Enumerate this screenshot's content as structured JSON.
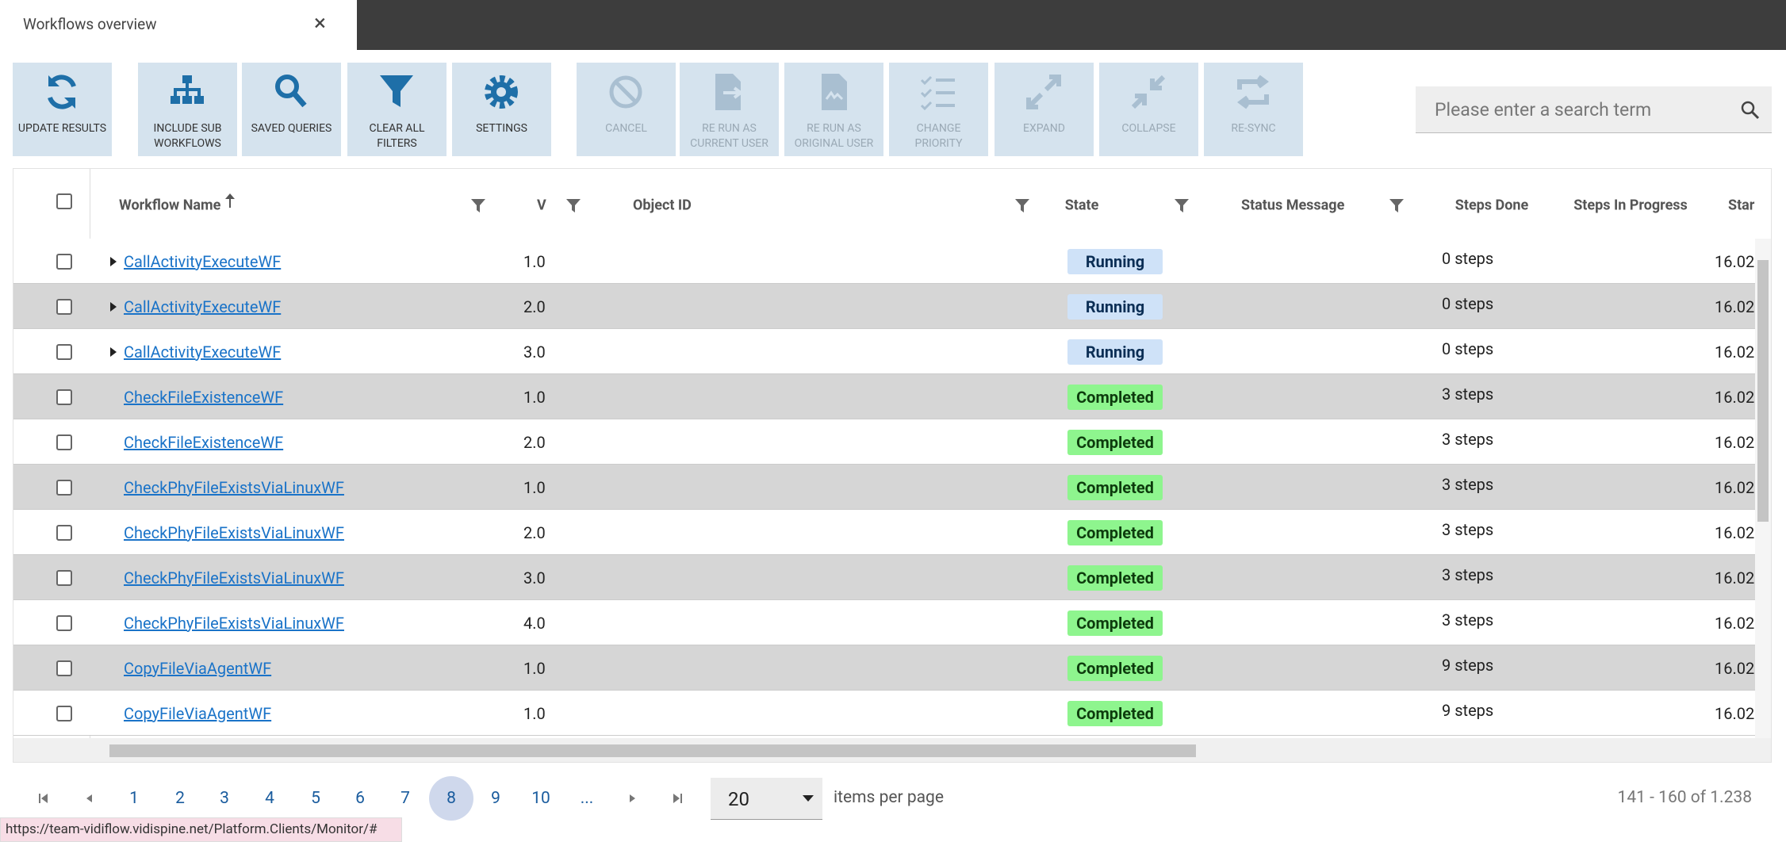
{
  "tab": {
    "title": "Workflows overview",
    "close": "×"
  },
  "toolbar": {
    "buttons": [
      {
        "label": "UPDATE RESULTS",
        "enabled": true
      },
      {
        "label": "INCLUDE SUB WORKFLOWS",
        "enabled": true
      },
      {
        "label": "SAVED QUERIES",
        "enabled": true
      },
      {
        "label": "CLEAR ALL FILTERS",
        "enabled": true
      },
      {
        "label": "SETTINGS",
        "enabled": true
      },
      {
        "label": "CANCEL",
        "enabled": false
      },
      {
        "label": "RE RUN AS CURRENT USER",
        "enabled": false
      },
      {
        "label": "RE RUN AS ORIGINAL USER",
        "enabled": false
      },
      {
        "label": "CHANGE PRIORITY",
        "enabled": false
      },
      {
        "label": "EXPAND",
        "enabled": false
      },
      {
        "label": "COLLAPSE",
        "enabled": false
      },
      {
        "label": "RE-SYNC",
        "enabled": false
      }
    ]
  },
  "search": {
    "placeholder": "Please enter a search term"
  },
  "table": {
    "columns": [
      "Workflow Name",
      "V",
      "Object ID",
      "State",
      "Status Message",
      "Steps Done",
      "Steps In Progress",
      "Star"
    ],
    "rows": [
      {
        "expandable": true,
        "name": "CallActivityExecuteWF",
        "version": "1.0",
        "state": "Running",
        "steps": "0 steps",
        "start": "16.02"
      },
      {
        "expandable": true,
        "name": "CallActivityExecuteWF",
        "version": "2.0",
        "state": "Running",
        "steps": "0 steps",
        "start": "16.02"
      },
      {
        "expandable": true,
        "name": "CallActivityExecuteWF",
        "version": "3.0",
        "state": "Running",
        "steps": "0 steps",
        "start": "16.02"
      },
      {
        "expandable": false,
        "name": "CheckFileExistenceWF",
        "version": "1.0",
        "state": "Completed",
        "steps": "3 steps",
        "start": "16.02"
      },
      {
        "expandable": false,
        "name": "CheckFileExistenceWF",
        "version": "2.0",
        "state": "Completed",
        "steps": "3 steps",
        "start": "16.02"
      },
      {
        "expandable": false,
        "name": "CheckPhyFileExistsViaLinuxWF",
        "version": "1.0",
        "state": "Completed",
        "steps": "3 steps",
        "start": "16.02"
      },
      {
        "expandable": false,
        "name": "CheckPhyFileExistsViaLinuxWF",
        "version": "2.0",
        "state": "Completed",
        "steps": "3 steps",
        "start": "16.02"
      },
      {
        "expandable": false,
        "name": "CheckPhyFileExistsViaLinuxWF",
        "version": "3.0",
        "state": "Completed",
        "steps": "3 steps",
        "start": "16.02"
      },
      {
        "expandable": false,
        "name": "CheckPhyFileExistsViaLinuxWF",
        "version": "4.0",
        "state": "Completed",
        "steps": "3 steps",
        "start": "16.02"
      },
      {
        "expandable": false,
        "name": "CopyFileViaAgentWF",
        "version": "1.0",
        "state": "Completed",
        "steps": "9 steps",
        "start": "16.02"
      },
      {
        "expandable": false,
        "name": "CopyFileViaAgentWF",
        "version": "1.0",
        "state": "Completed",
        "steps": "9 steps",
        "start": "16.02"
      }
    ]
  },
  "pagination": {
    "pages": [
      {
        "label": "1",
        "selected": false
      },
      {
        "label": "2",
        "selected": false
      },
      {
        "label": "3",
        "selected": false
      },
      {
        "label": "4",
        "selected": false
      },
      {
        "label": "5",
        "selected": false
      },
      {
        "label": "6",
        "selected": false
      },
      {
        "label": "7",
        "selected": false
      },
      {
        "label": "8",
        "selected": true
      },
      {
        "label": "9",
        "selected": false
      },
      {
        "label": "10",
        "selected": false
      },
      {
        "label": "...",
        "selected": false
      }
    ],
    "page_size": "20",
    "page_size_label": "items per page",
    "range": "141 - 160 of 1.238"
  },
  "status_bar": {
    "url": "https://team-vidiflow.vidispine.net/Platform.Clients/Monitor/#"
  }
}
